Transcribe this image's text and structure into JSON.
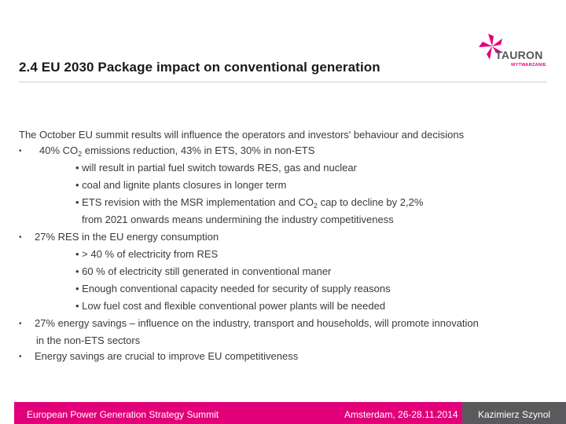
{
  "slide": {
    "title": "2.4 EU 2030 Package impact on conventional generation"
  },
  "logo": {
    "word": "TAURON",
    "sub": "WYTWARZANIE",
    "brand_color": "#e2007a"
  },
  "body": {
    "intro": "The October EU summit results will influence the operators and investors' behaviour and decisions",
    "bullet_char": "•",
    "b1": {
      "pre": "40% CO",
      "sub": "2",
      "post": " emissions reduction, 43% in ETS, 30% in non-ETS"
    },
    "b1_s1": "• will result in partial fuel switch towards RES, gas and nuclear",
    "b1_s2": "• coal and lignite plants closures in longer term",
    "b1_s3": {
      "pre": "• ETS revision with the MSR implementation and CO",
      "sub": "2",
      "post": " cap to decline by 2,2%"
    },
    "b1_s3_cont": "from 2021 onwards means undermining the industry  competitiveness",
    "b2": "27% RES in the EU energy consumption",
    "b2_s1": "• > 40 % of electricity from RES",
    "b2_s2": "• 60 % of electricity still generated in conventional maner",
    "b2_s3": "• Enough conventional capacity needed for security of supply reasons",
    "b2_s4": "• Low fuel cost and flexible conventional power plants will be needed",
    "b3": "27% energy savings – influence on the industry, transport and households, will promote innovation",
    "b3_cont": "in the non-ETS sectors",
    "b4": "Energy savings are crucial to improve EU competitiveness"
  },
  "footer": {
    "event": "European Power Generation Strategy Summit",
    "place_date": "Amsterdam, 26-28.11.2014",
    "speaker": "Kazimierz Szynol",
    "pink": "#e2007a",
    "grey": "#5a5a5c"
  }
}
